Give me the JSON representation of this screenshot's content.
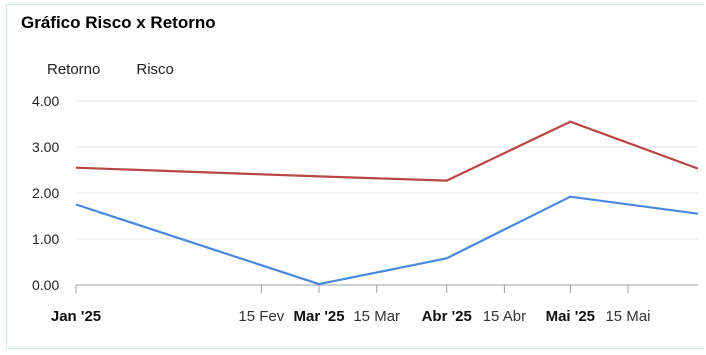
{
  "chart_data": {
    "type": "line",
    "title": "Gráfico Risco x Retorno",
    "xlabel": "",
    "ylabel": "",
    "ylim": [
      0,
      4
    ],
    "yticks": [
      "4.00",
      "3.00",
      "2.00",
      "1.00",
      "0.00"
    ],
    "ytick_values": [
      4,
      3,
      2,
      1,
      0
    ],
    "xticks": [
      {
        "label": "Jan '25",
        "date": "2025-01-01",
        "major": true
      },
      {
        "label": "15 Fev",
        "date": "2025-02-15",
        "major": false
      },
      {
        "label": "Mar '25",
        "date": "2025-03-01",
        "major": true
      },
      {
        "label": "15 Mar",
        "date": "2025-03-15",
        "major": false
      },
      {
        "label": "Abr '25",
        "date": "2025-04-01",
        "major": true
      },
      {
        "label": "15 Abr",
        "date": "2025-04-15",
        "major": false
      },
      {
        "label": "Mai '25",
        "date": "2025-05-01",
        "major": true
      },
      {
        "label": "15 Mai",
        "date": "2025-05-15",
        "major": false
      }
    ],
    "x": [
      "2025-01-01",
      "2025-03-01",
      "2025-04-01",
      "2025-05-01",
      "2025-06-01"
    ],
    "grid": true,
    "legend_position": "top-left",
    "series": [
      {
        "name": "Retorno",
        "color": "#4a88e0",
        "values": [
          1.75,
          0.02,
          0.58,
          1.92,
          1.55
        ]
      },
      {
        "name": "Risco",
        "color": "#b84444",
        "values": [
          2.55,
          2.36,
          2.27,
          3.55,
          2.53
        ]
      }
    ]
  }
}
